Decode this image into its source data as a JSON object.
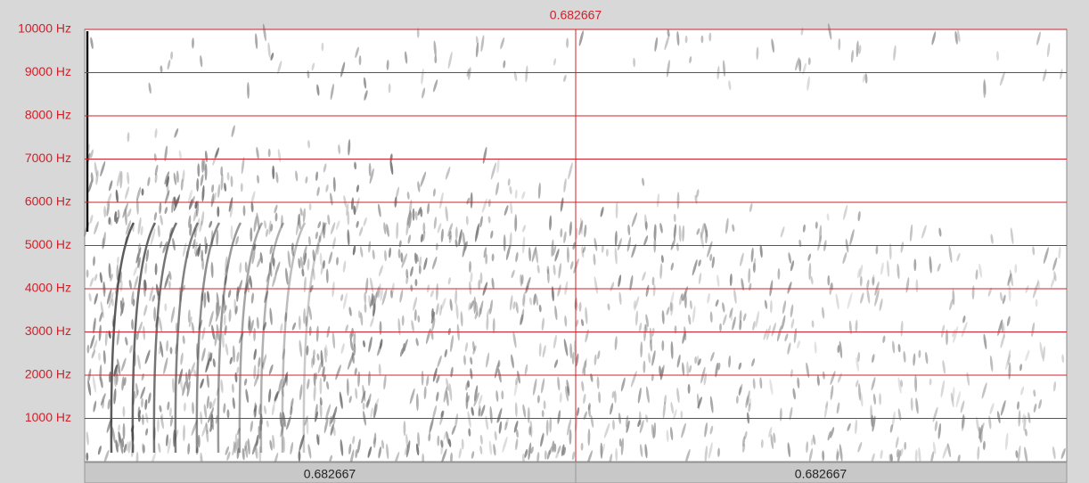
{
  "y_axis": {
    "labels": [
      "10000 Hz",
      "9000 Hz",
      "8000 Hz",
      "7000 Hz",
      "6000 Hz",
      "5000 Hz",
      "4000 Hz",
      "3000 Hz",
      "2000 Hz",
      "1000 Hz"
    ]
  },
  "cursor": {
    "label": "0.682667"
  },
  "bottom_bar": {
    "left": "0.682667",
    "right": "0.682667"
  }
}
